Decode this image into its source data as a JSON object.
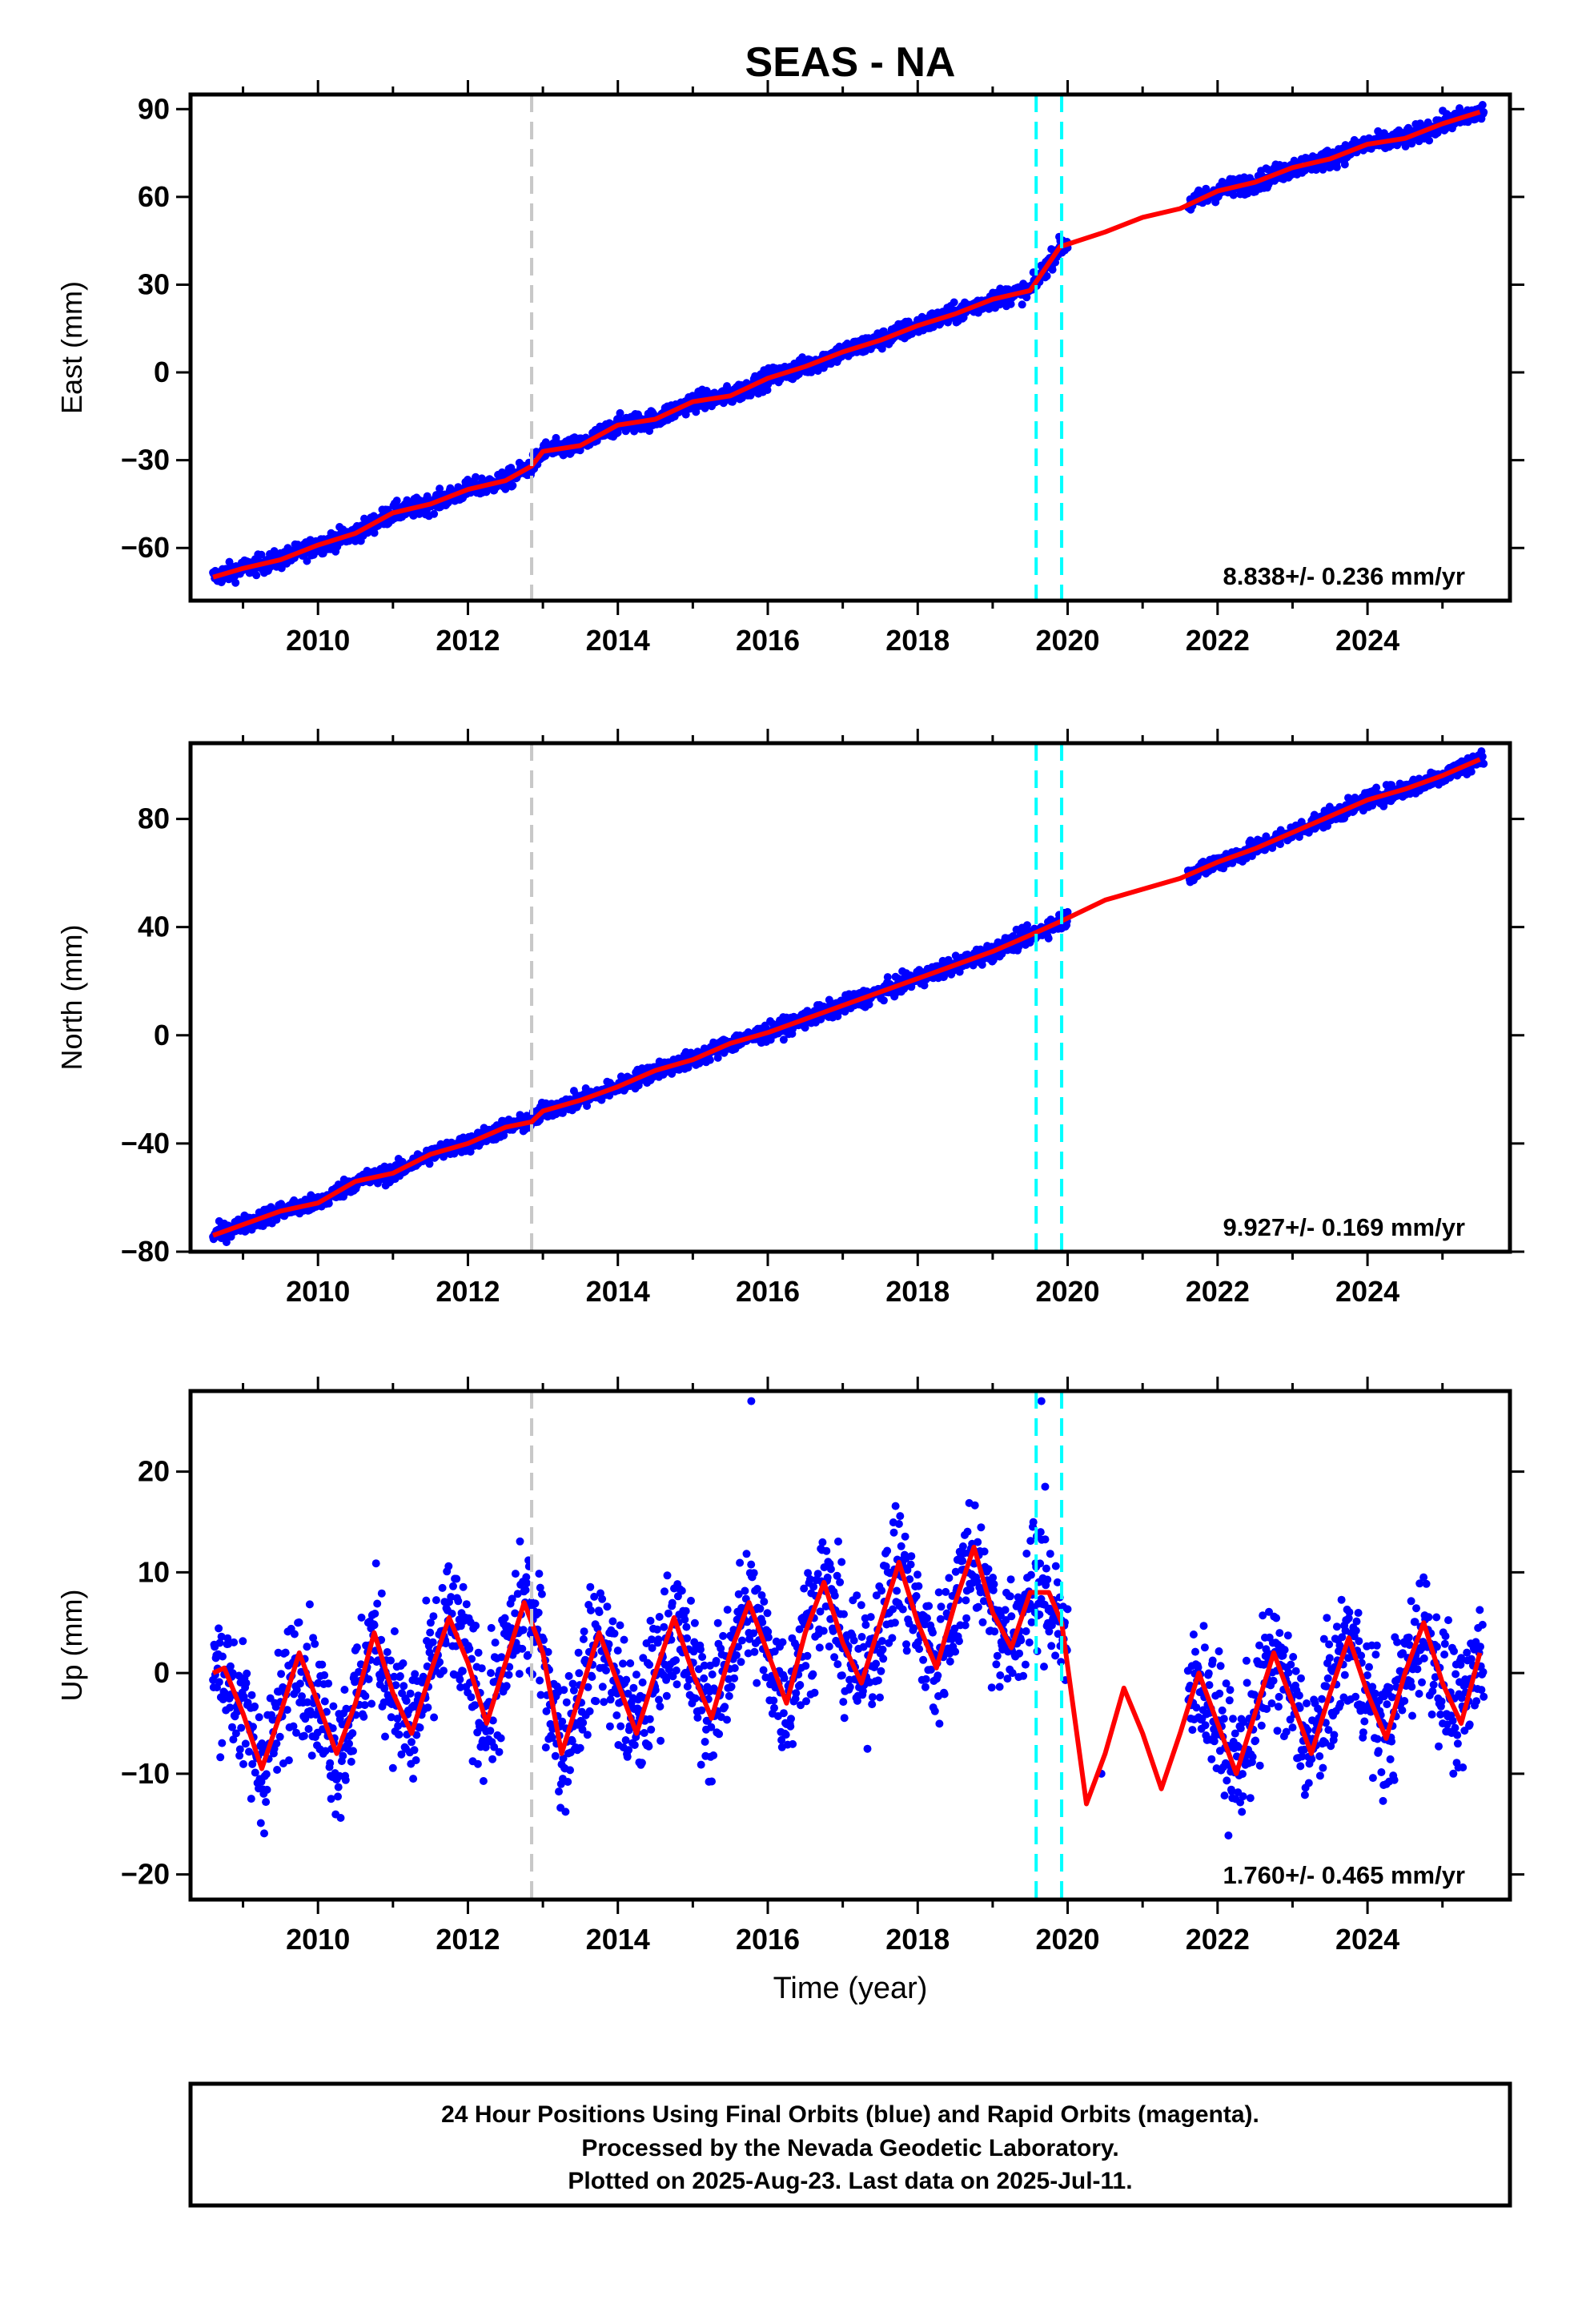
{
  "chart_data": {
    "type": "scatter",
    "title": "SEAS - NA",
    "xlabel": "Time (year)",
    "xlim": [
      2008.3,
      2025.9
    ],
    "x_ticks": [
      "2010",
      "2012",
      "2014",
      "2016",
      "2018",
      "2020",
      "2022",
      "2024"
    ],
    "grid": false,
    "colors": {
      "observed": "#0000ff",
      "model": "#ff0000",
      "antenna_change": "#c8c8c8",
      "event": "#00ffff"
    },
    "vertical_lines": [
      {
        "x": 2012.85,
        "style": "dashed",
        "color": "#c8c8c8"
      },
      {
        "x": 2019.58,
        "style": "dashed",
        "color": "#00ffff"
      },
      {
        "x": 2019.92,
        "style": "dashed",
        "color": "#00ffff"
      }
    ],
    "data_gap": [
      2020.0,
      2021.6
    ],
    "panels": [
      {
        "name": "east",
        "ylabel": "East (mm)",
        "ylim": [
          -78,
          95
        ],
        "y_ticks": [
          "−60",
          "−30",
          "0",
          "30",
          "60",
          "90"
        ],
        "rate": "8.838+/- 0.236 mm/yr",
        "x": [
          2008.6,
          2009.0,
          2009.5,
          2010.0,
          2010.5,
          2011.0,
          2011.5,
          2012.0,
          2012.5,
          2012.85,
          2013.0,
          2013.5,
          2014.0,
          2014.5,
          2015.0,
          2015.5,
          2016.0,
          2016.5,
          2017.0,
          2017.5,
          2018.0,
          2018.5,
          2019.0,
          2019.5,
          2019.9,
          2020.5,
          2021.0,
          2021.5,
          2022.0,
          2022.5,
          2023.0,
          2023.5,
          2024.0,
          2024.5,
          2025.0,
          2025.5
        ],
        "y": [
          -70,
          -67,
          -64,
          -59,
          -55,
          -48,
          -45,
          -40,
          -37,
          -32,
          -27,
          -25,
          -18,
          -16,
          -10,
          -8,
          -2,
          2,
          7,
          11,
          16,
          20,
          25,
          28,
          43,
          48,
          53,
          56,
          62,
          65,
          70,
          73,
          78,
          80,
          85,
          89
        ]
      },
      {
        "name": "north",
        "ylabel": "North (mm)",
        "ylim": [
          -80,
          108
        ],
        "y_ticks": [
          "−80",
          "−40",
          "0",
          "40",
          "80"
        ],
        "rate": "9.927+/- 0.169 mm/yr",
        "x": [
          2008.6,
          2009.0,
          2009.5,
          2010.0,
          2010.5,
          2011.0,
          2011.5,
          2012.0,
          2012.5,
          2012.85,
          2013.0,
          2013.5,
          2014.0,
          2014.5,
          2015.0,
          2015.5,
          2016.0,
          2016.5,
          2017.0,
          2017.5,
          2018.0,
          2018.5,
          2019.0,
          2019.5,
          2019.9,
          2020.5,
          2021.0,
          2021.5,
          2022.0,
          2022.5,
          2023.0,
          2023.5,
          2024.0,
          2024.5,
          2025.0,
          2025.5
        ],
        "y": [
          -74,
          -70,
          -65,
          -62,
          -54,
          -51,
          -44,
          -40,
          -34,
          -32,
          -28,
          -24,
          -19,
          -13,
          -9,
          -3,
          1,
          6,
          11,
          16,
          21,
          26,
          31,
          37,
          42,
          50,
          54,
          58,
          64,
          69,
          75,
          81,
          87,
          91,
          96,
          102
        ]
      },
      {
        "name": "up",
        "ylabel": "Up (mm)",
        "ylim": [
          -22.5,
          28
        ],
        "y_ticks": [
          "−20",
          "−10",
          "0",
          "10",
          "20"
        ],
        "rate": "1.760+/- 0.465 mm/yr",
        "x": [
          2008.6,
          2008.75,
          2009.0,
          2009.25,
          2009.5,
          2009.75,
          2010.0,
          2010.25,
          2010.5,
          2010.75,
          2011.0,
          2011.25,
          2011.5,
          2011.75,
          2012.0,
          2012.25,
          2012.5,
          2012.75,
          2013.0,
          2013.25,
          2013.5,
          2013.75,
          2014.0,
          2014.25,
          2014.5,
          2014.75,
          2015.0,
          2015.25,
          2015.5,
          2015.75,
          2016.0,
          2016.25,
          2016.5,
          2016.75,
          2017.0,
          2017.25,
          2017.5,
          2017.75,
          2018.0,
          2018.25,
          2018.5,
          2018.75,
          2019.0,
          2019.25,
          2019.5,
          2019.75,
          2019.92,
          2020.25,
          2020.5,
          2020.75,
          2021.0,
          2021.25,
          2021.5,
          2021.75,
          2022.0,
          2022.25,
          2022.5,
          2022.75,
          2023.0,
          2023.25,
          2023.5,
          2023.75,
          2024.0,
          2024.25,
          2024.5,
          2024.75,
          2025.0,
          2025.25,
          2025.5
        ],
        "y": [
          0,
          0.5,
          -4,
          -9.5,
          -4,
          2,
          -3,
          -8,
          -3,
          4,
          -2,
          -6,
          0,
          5.5,
          1,
          -5,
          1,
          7,
          2,
          -8,
          -2,
          4,
          -1,
          -6,
          0,
          5.5,
          0,
          -4.5,
          2,
          7,
          2,
          -3,
          4,
          9,
          3,
          -1,
          5,
          11,
          5,
          0.5,
          7,
          12.5,
          6,
          2.5,
          8,
          8,
          5,
          -13,
          -8,
          -1.5,
          -6,
          -11.5,
          -6,
          0,
          -5,
          -10,
          -4,
          2,
          -3,
          -8,
          -2,
          3.5,
          -2,
          -6.5,
          0,
          5,
          -1,
          -5,
          2
        ]
      }
    ],
    "footer": [
      "24 Hour Positions Using Final Orbits (blue) and Rapid Orbits (magenta).",
      "Processed by the Nevada Geodetic Laboratory.",
      "Plotted on 2025-Aug-23. Last data on 2025-Jul-11."
    ]
  }
}
